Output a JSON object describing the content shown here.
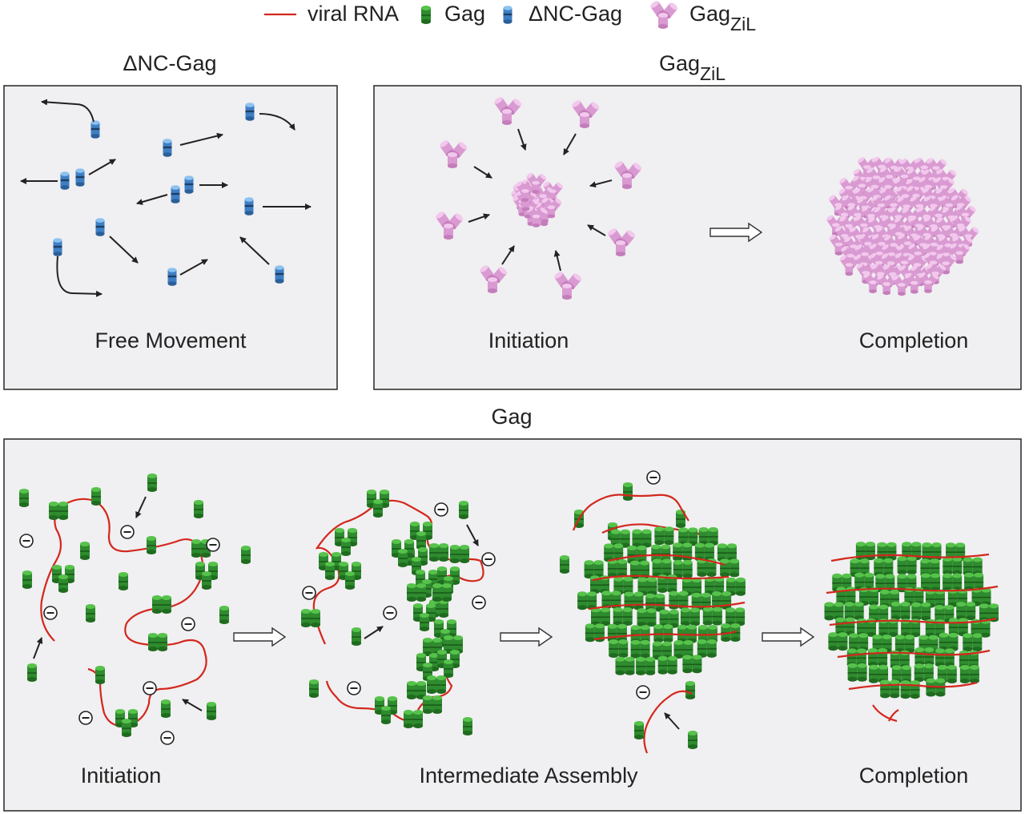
{
  "legend": {
    "rna_label": "viral RNA",
    "gag_label": "Gag",
    "dnc_label": "ΔNC-Gag",
    "zil_label_main": "Gag",
    "zil_label_sub": "ZiL"
  },
  "panels": {
    "dnc": {
      "title": "ΔNC-Gag",
      "stage": "Free Movement"
    },
    "zil": {
      "title_main": "Gag",
      "title_sub": "ZiL",
      "stage_initiation": "Initiation",
      "stage_completion": "Completion"
    },
    "gag": {
      "title": "Gag",
      "stage_initiation": "Initiation",
      "stage_intermediate": "Intermediate Assembly",
      "stage_completion": "Completion"
    }
  },
  "colors": {
    "rna": "#d3271d",
    "gag_green": "#2e8b2e",
    "gag_green_top": "#4fbf45",
    "dnc_blue": "#3f7fc4",
    "dnc_blue_top": "#7fb7ea",
    "zil_pink": "#d99ad2",
    "zil_pink_top": "#f1c5ec",
    "panel_bg": "#f0eff1"
  },
  "icons": [
    "gag-monomer-icon",
    "dnc-gag-monomer-icon",
    "gag-zil-trimer-icon",
    "negative-charge-icon"
  ]
}
